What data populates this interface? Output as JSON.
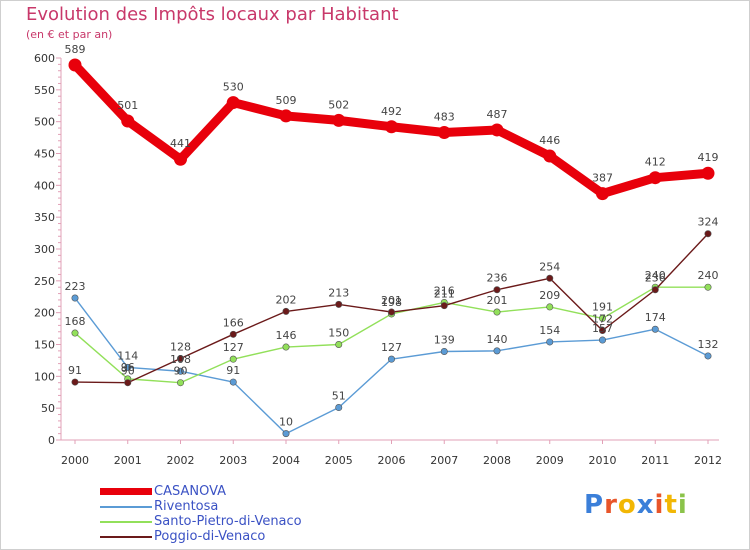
{
  "chart_data": {
    "type": "line",
    "title": "Evolution des Impôts locaux par Habitant",
    "subtitle": "(en € et par an)",
    "x": [
      "2000",
      "2001",
      "2002",
      "2003",
      "2004",
      "2005",
      "2006",
      "2007",
      "2008",
      "2009",
      "2010",
      "2011",
      "2012"
    ],
    "ylim": [
      0,
      600
    ],
    "yticks": [
      0,
      50,
      100,
      150,
      200,
      250,
      300,
      350,
      400,
      450,
      500,
      550,
      600
    ],
    "grid": false,
    "legend_position": "bottom-left",
    "series": [
      {
        "name": "CASANOVA",
        "color": "#e8000b",
        "values": [
          589,
          501,
          441,
          530,
          509,
          502,
          492,
          483,
          487,
          446,
          387,
          412,
          419
        ]
      },
      {
        "name": "Riventosa",
        "color": "#5b9bd5",
        "values": [
          223,
          114,
          108,
          91,
          10,
          51,
          127,
          139,
          140,
          154,
          157,
          174,
          132
        ]
      },
      {
        "name": "Santo-Pietro-di-Venaco",
        "color": "#92e05a",
        "values": [
          168,
          96,
          90,
          127,
          146,
          150,
          198,
          216,
          201,
          209,
          191,
          240,
          240
        ]
      },
      {
        "name": "Poggio-di-Venaco",
        "color": "#6b1a1a",
        "values": [
          91,
          90,
          128,
          166,
          202,
          213,
          201,
          211,
          236,
          254,
          172,
          236,
          324
        ]
      }
    ]
  },
  "labels": {
    "CASANOVA": [
      "589",
      "501",
      "441",
      "530",
      "509",
      "502",
      "492",
      "483",
      "487",
      "446",
      "387",
      "412",
      "419"
    ],
    "Riventosa": [
      "223",
      "114",
      "108",
      "91",
      "10",
      "51",
      "127",
      "139",
      "140",
      "154",
      "157",
      "174",
      "132"
    ],
    "Santo-Pietro-di-Venaco": [
      "168",
      "96",
      "90",
      "127",
      "146",
      "150",
      "198",
      "216",
      "201",
      "209",
      "191",
      "240",
      "240"
    ],
    "Poggio-di-Venaco": [
      "91",
      "90",
      "128",
      "166",
      "202",
      "213",
      "201",
      "211",
      "236",
      "254",
      "172",
      "236",
      "324"
    ]
  },
  "brand": {
    "logo_text": "Proxiti"
  }
}
